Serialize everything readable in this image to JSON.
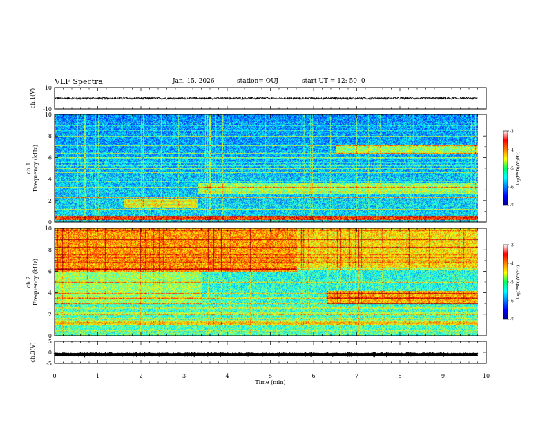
{
  "chart_data": {
    "type": "heatmap",
    "title": "VLF Spectra",
    "date": "Jan. 15, 2026",
    "station": "station= OUJ",
    "start_ut": "start UT =  12: 50: 0",
    "xlabel": "Time (min)",
    "xlim": [
      0,
      10
    ],
    "xticks": [
      "0",
      "1",
      "2",
      "3",
      "4",
      "5",
      "6",
      "7",
      "8",
      "9",
      "10"
    ],
    "data_end_min": 9.8,
    "panels": [
      {
        "id": "ch1-waveform",
        "type": "line",
        "ylabel": "ch.1(V)",
        "ylim": [
          -10,
          10
        ],
        "yticks": [
          "10",
          "-10"
        ],
        "level": 0,
        "amplitude": 1.2
      },
      {
        "id": "ch1-spectrogram",
        "type": "heatmap",
        "ylabel": "ch.1\nFrequency (kHz)",
        "ylim": [
          0,
          10
        ],
        "yticks": [
          "0",
          "2",
          "4",
          "6",
          "8",
          "10"
        ],
        "colorbar": {
          "label": "log(PSD)(V²/Hz)",
          "range": [
            -7,
            -3
          ],
          "ticks": [
            "-3",
            "-4",
            "-5",
            "-6",
            "-7"
          ]
        },
        "base_level": -5.6,
        "lines_khz": [
          0.5,
          1.2,
          1.6,
          2.0,
          2.3,
          2.8,
          3.3,
          4.2,
          4.6,
          5.0,
          5.3,
          6.0,
          6.4,
          7.1,
          8.0,
          9.2
        ],
        "events": [
          {
            "t_start": 1.6,
            "t_end": 3.3,
            "f_low": 1.4,
            "f_high": 2.2,
            "level": -4.6
          },
          {
            "t_start": 3.3,
            "t_end": 9.8,
            "f_low": 2.6,
            "f_high": 3.6,
            "level": -4.9
          },
          {
            "t_start": 6.5,
            "t_end": 9.8,
            "f_low": 6.3,
            "f_high": 7.2,
            "level": -4.9
          },
          {
            "t_start": 0.0,
            "t_end": 9.8,
            "f_low": 0.2,
            "f_high": 0.6,
            "level": -3.7
          }
        ]
      },
      {
        "id": "ch2-spectrogram",
        "type": "heatmap",
        "ylabel": "ch.2\nFrequency (kHz)",
        "ylim": [
          0,
          10
        ],
        "yticks": [
          "0",
          "2",
          "4",
          "6",
          "8",
          "10"
        ],
        "colorbar": {
          "label": "log(PSD)(V²/Hz)",
          "range": [
            -7,
            -3
          ],
          "ticks": [
            "-3",
            "-4",
            "-5",
            "-6",
            "-7"
          ]
        },
        "base_level": -5.2,
        "lines_khz": [
          0.4,
          1.2,
          1.6,
          2.0,
          2.6,
          3.0,
          3.5,
          4.0,
          5.0,
          6.2,
          7.0,
          8.3,
          9.0
        ],
        "events": [
          {
            "t_start": 0.0,
            "t_end": 5.6,
            "f_low": 6.0,
            "f_high": 10.0,
            "level": -4.1
          },
          {
            "t_start": 5.6,
            "t_end": 9.8,
            "f_low": 6.4,
            "f_high": 10.0,
            "level": -4.4
          },
          {
            "t_start": 0.0,
            "t_end": 3.4,
            "f_low": 3.0,
            "f_high": 6.0,
            "level": -4.9
          },
          {
            "t_start": 6.3,
            "t_end": 9.8,
            "f_low": 3.0,
            "f_high": 4.2,
            "level": -4.2
          },
          {
            "t_start": 0.0,
            "t_end": 9.8,
            "f_low": 1.0,
            "f_high": 1.4,
            "level": -4.4
          }
        ]
      },
      {
        "id": "ch3-waveform",
        "type": "line",
        "ylabel": "ch.3(V)",
        "ylim": [
          -5,
          5
        ],
        "yticks": [
          "5",
          "0",
          "-5"
        ],
        "level": -1.0,
        "amplitude": 0.15
      }
    ],
    "colors": {
      "axis": "#000000",
      "trace": "#000000"
    }
  }
}
